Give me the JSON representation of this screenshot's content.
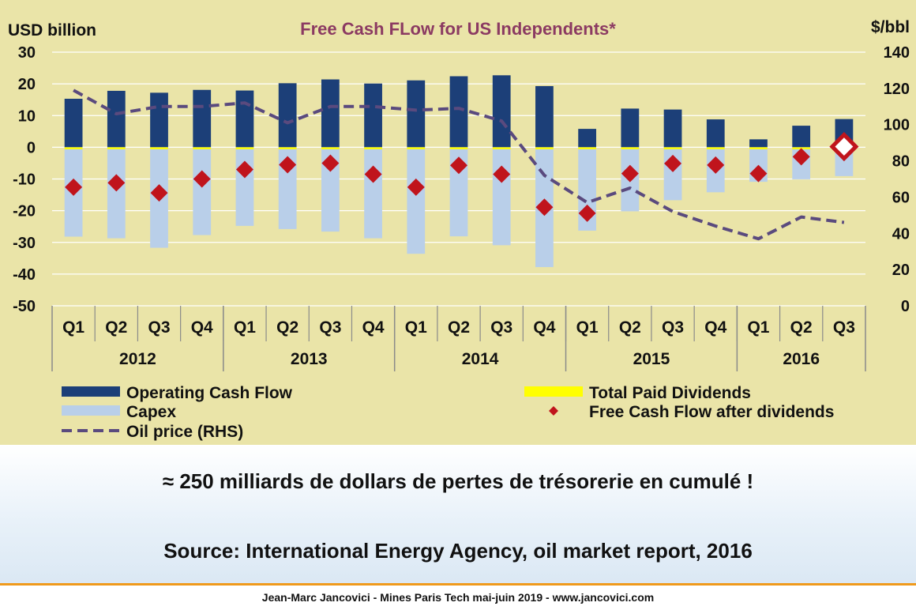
{
  "chart_data": {
    "type": "bar",
    "title": "Free Cash FLow for US Independents*",
    "y_left_label": "USD billion",
    "y_right_label": "$/bbl",
    "ylim_left": [
      -50,
      30
    ],
    "ylim_right": [
      0,
      140
    ],
    "y_left_ticks": [
      "30",
      "20",
      "10",
      "0",
      "-10",
      "-20",
      "-30",
      "-40",
      "-50"
    ],
    "y_right_ticks": [
      "140",
      "120",
      "100",
      "80",
      "60",
      "40",
      "20",
      "0"
    ],
    "categories": [
      "Q1",
      "Q2",
      "Q3",
      "Q4",
      "Q1",
      "Q2",
      "Q3",
      "Q4",
      "Q1",
      "Q2",
      "Q3",
      "Q4",
      "Q1",
      "Q2",
      "Q3",
      "Q4",
      "Q1",
      "Q2",
      "Q3"
    ],
    "years": [
      {
        "label": "2012",
        "quarters": 4
      },
      {
        "label": "2013",
        "quarters": 4
      },
      {
        "label": "2014",
        "quarters": 4
      },
      {
        "label": "2015",
        "quarters": 4
      },
      {
        "label": "2016",
        "quarters": 3
      }
    ],
    "series": [
      {
        "name": "Operating Cash Flow",
        "type": "bar",
        "axis": "left",
        "values": [
          15.3,
          17.8,
          17.2,
          18.1,
          17.9,
          20.2,
          21.4,
          20.1,
          21.1,
          22.4,
          22.7,
          19.3,
          5.8,
          12.2,
          11.9,
          8.8,
          2.5,
          6.8,
          8.9
        ]
      },
      {
        "name": "Capex",
        "type": "bar",
        "axis": "left",
        "values": [
          -28.2,
          -28.7,
          -31.7,
          -27.7,
          -24.8,
          -25.8,
          -26.6,
          -28.7,
          -33.6,
          -28.1,
          -30.9,
          -37.8,
          -26.3,
          -20.2,
          -16.7,
          -14.2,
          -10.9,
          -10.1,
          -9.1
        ]
      },
      {
        "name": "Total Paid Dividends",
        "type": "bar",
        "axis": "left",
        "values": [
          -0.5,
          -0.5,
          -0.5,
          -0.5,
          -0.5,
          -0.6,
          -0.6,
          -0.6,
          -0.6,
          -0.6,
          -0.6,
          -0.6,
          -0.6,
          -0.5,
          -0.5,
          -0.5,
          -0.4,
          -0.4,
          -0.4
        ]
      },
      {
        "name": "Free Cash Flow after dividends",
        "type": "scatter",
        "axis": "left",
        "values": [
          -12.6,
          -11.2,
          -14.4,
          -10.0,
          -7.0,
          -5.5,
          -5.0,
          -8.5,
          -12.6,
          -5.7,
          -8.5,
          -18.9,
          -20.8,
          -8.3,
          -5.1,
          -5.6,
          -8.3,
          -3.0,
          0.2
        ]
      },
      {
        "name": "Oil price (RHS)",
        "type": "line",
        "axis": "right",
        "values": [
          119,
          106,
          110,
          110,
          112,
          101,
          110,
          110,
          108,
          109,
          102,
          72,
          57,
          65,
          52,
          44,
          37,
          49,
          46
        ]
      }
    ],
    "legend": [
      {
        "label": "Operating Cash Flow",
        "swatch": "bar",
        "color": "#1c3f78"
      },
      {
        "label": "Total Paid Dividends",
        "swatch": "bar",
        "color": "#ffff00"
      },
      {
        "label": "Capex",
        "swatch": "bar",
        "color": "#b9cfe9"
      },
      {
        "label": "Free Cash Flow after dividends",
        "swatch": "diamond",
        "color": "#c0141c"
      },
      {
        "label": "Oil price (RHS)",
        "swatch": "dash",
        "color": "#5a4a7e"
      }
    ],
    "grid": true,
    "legend_position": "bottom",
    "colors": {
      "background": "#eae4a8",
      "grid": "#ffffff",
      "operating_cash_flow": "#1c3f78",
      "capex": "#b9cfe9",
      "dividends": "#ffff00",
      "free_cash_flow": "#c0141c",
      "oil_price": "#5a4a7e",
      "title": "#8b3a62"
    }
  },
  "caption": {
    "main": "≈ 250 milliards de dollars de pertes de trésorerie en cumulé !",
    "source": "Source: International Energy Agency, oil market report, 2016"
  },
  "footer": {
    "text": "Jean-Marc Jancovici - Mines Paris Tech mai-juin 2019 - www.jancovici.com",
    "rule_color": "#ef9a1c"
  }
}
